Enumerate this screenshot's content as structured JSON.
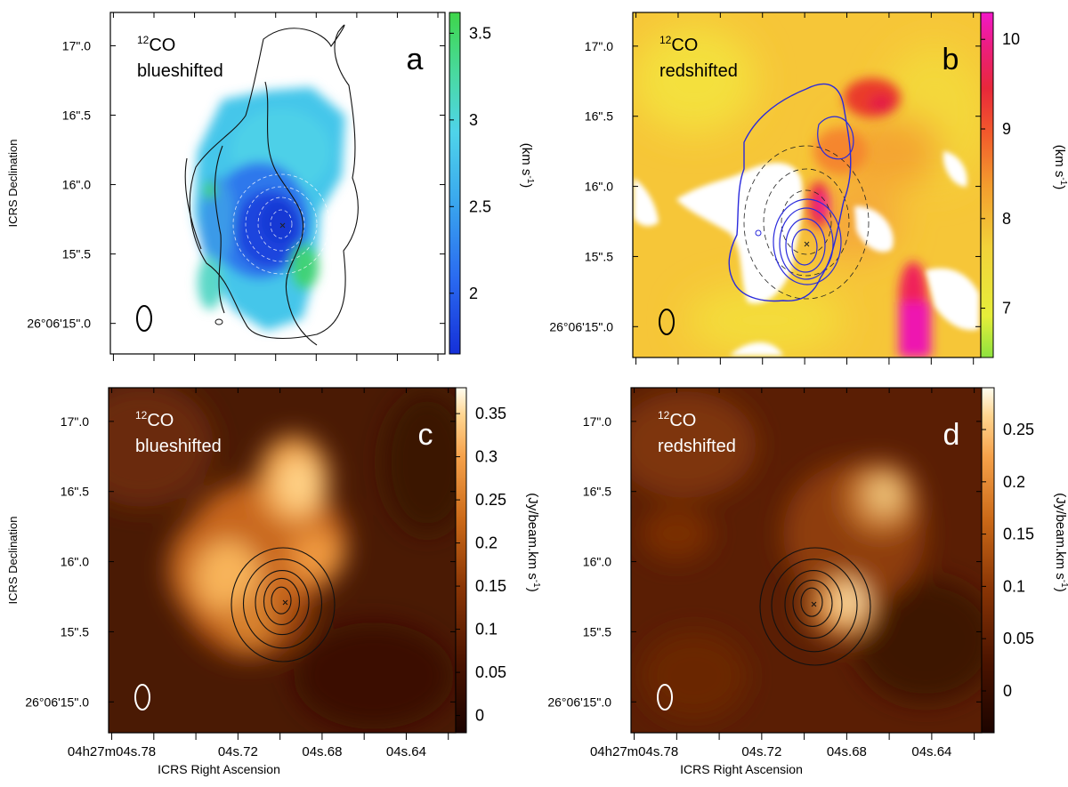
{
  "chart_data": [
    {
      "id": "a",
      "type": "heatmap",
      "panel_letter": "a",
      "label_line1": "CO",
      "label_isotope": "12",
      "label_line2": "blueshifted",
      "colormap": "blue",
      "y_ticks": [
        {
          "value": 17.0,
          "label": "17\".0"
        },
        {
          "value": 16.5,
          "label": "16\".5"
        },
        {
          "value": 16.0,
          "label": "16\".0"
        },
        {
          "value": 15.5,
          "label": "15\".5"
        },
        {
          "value": 15.0,
          "label": "26°06'15\".0"
        }
      ],
      "ylim": [
        14.78,
        17.24
      ],
      "ylabel": "ICRS Declination",
      "colorbar": {
        "range": [
          1.65,
          3.62
        ],
        "ticks": [
          {
            "value": 3.5,
            "label": "3.5"
          },
          {
            "value": 3,
            "label": "3"
          },
          {
            "value": 2.5,
            "label": "2.5"
          },
          {
            "value": 2,
            "label": "2"
          }
        ],
        "label": "(km s-1)",
        "label_base": "(km s",
        "label_sup": "-1",
        "label_close": ")"
      }
    },
    {
      "id": "b",
      "type": "heatmap",
      "panel_letter": "b",
      "label_line1": "CO",
      "label_isotope": "12",
      "label_line2": "redshifted",
      "colormap": "red",
      "y_ticks": [
        {
          "value": 17.0,
          "label": "17\".0"
        },
        {
          "value": 16.5,
          "label": "16\".5"
        },
        {
          "value": 16.0,
          "label": "16\".0"
        },
        {
          "value": 15.5,
          "label": "15\".5"
        },
        {
          "value": 15.0,
          "label": "26°06'15\".0"
        }
      ],
      "ylim": [
        14.78,
        17.24
      ],
      "ylabel": "",
      "colorbar": {
        "range": [
          6.45,
          10.3
        ],
        "ticks": [
          {
            "value": 10,
            "label": "10"
          },
          {
            "value": 9,
            "label": "9"
          },
          {
            "value": 8,
            "label": "8"
          },
          {
            "value": 7,
            "label": "7"
          }
        ],
        "label": "(km s-1)",
        "label_base": "(km s",
        "label_sup": "-1",
        "label_close": ")"
      }
    },
    {
      "id": "c",
      "type": "heatmap",
      "panel_letter": "c",
      "label_line1": "CO",
      "label_isotope": "12",
      "label_line2": "blueshifted",
      "colormap": "heat",
      "y_ticks": [
        {
          "value": 17.0,
          "label": "17\".0"
        },
        {
          "value": 16.5,
          "label": "16\".5"
        },
        {
          "value": 16.0,
          "label": "16\".0"
        },
        {
          "value": 15.5,
          "label": "15\".5"
        },
        {
          "value": 15.0,
          "label": "26°06'15\".0"
        }
      ],
      "ylim": [
        14.78,
        17.24
      ],
      "ylabel": "ICRS Declination",
      "x_ticks": [
        {
          "value": 4.78,
          "label": "04h27m04s.78"
        },
        {
          "value": 4.72,
          "label": "04s.72"
        },
        {
          "value": 4.68,
          "label": "04s.68"
        },
        {
          "value": 4.64,
          "label": "04s.64"
        }
      ],
      "xlim": [
        4.7815,
        4.6165
      ],
      "xlabel": "ICRS Right Ascension",
      "colorbar": {
        "range": [
          -0.02,
          0.38
        ],
        "ticks": [
          {
            "value": 0.35,
            "label": "0.35"
          },
          {
            "value": 0.3,
            "label": "0.3"
          },
          {
            "value": 0.25,
            "label": "0.25"
          },
          {
            "value": 0.2,
            "label": "0.2"
          },
          {
            "value": 0.15,
            "label": "0.15"
          },
          {
            "value": 0.1,
            "label": "0.1"
          },
          {
            "value": 0.05,
            "label": "0.05"
          },
          {
            "value": 0,
            "label": "0"
          }
        ],
        "label": "(Jy/beam.km s-1)",
        "label_base": "(Jy/beam.km s",
        "label_sup": "-1",
        "label_close": ")"
      }
    },
    {
      "id": "d",
      "type": "heatmap",
      "panel_letter": "d",
      "label_line1": "CO",
      "label_isotope": "12",
      "label_line2": "redshifted",
      "colormap": "heat",
      "y_ticks": [
        {
          "value": 17.0,
          "label": "17\".0"
        },
        {
          "value": 16.5,
          "label": "16\".5"
        },
        {
          "value": 16.0,
          "label": "16\".0"
        },
        {
          "value": 15.5,
          "label": "15\".5"
        },
        {
          "value": 15.0,
          "label": "26°06'15\".0"
        }
      ],
      "ylim": [
        14.78,
        17.24
      ],
      "ylabel": "",
      "x_ticks": [
        {
          "value": 4.78,
          "label": "04h27m04s.78"
        },
        {
          "value": 4.72,
          "label": "04s.72"
        },
        {
          "value": 4.68,
          "label": "04s.68"
        },
        {
          "value": 4.64,
          "label": "04s.64"
        }
      ],
      "xlim": [
        4.7815,
        4.6165
      ],
      "xlabel": "ICRS Right Ascension",
      "colorbar": {
        "range": [
          -0.04,
          0.29
        ],
        "ticks": [
          {
            "value": 0.25,
            "label": "0.25"
          },
          {
            "value": 0.2,
            "label": "0.2"
          },
          {
            "value": 0.15,
            "label": "0.15"
          },
          {
            "value": 0.1,
            "label": "0.1"
          },
          {
            "value": 0.05,
            "label": "0.05"
          },
          {
            "value": 0,
            "label": "0"
          }
        ],
        "label": "(Jy/beam.km s-1)",
        "label_base": "(Jy/beam.km s",
        "label_sup": "-1",
        "label_close": ")"
      }
    }
  ]
}
